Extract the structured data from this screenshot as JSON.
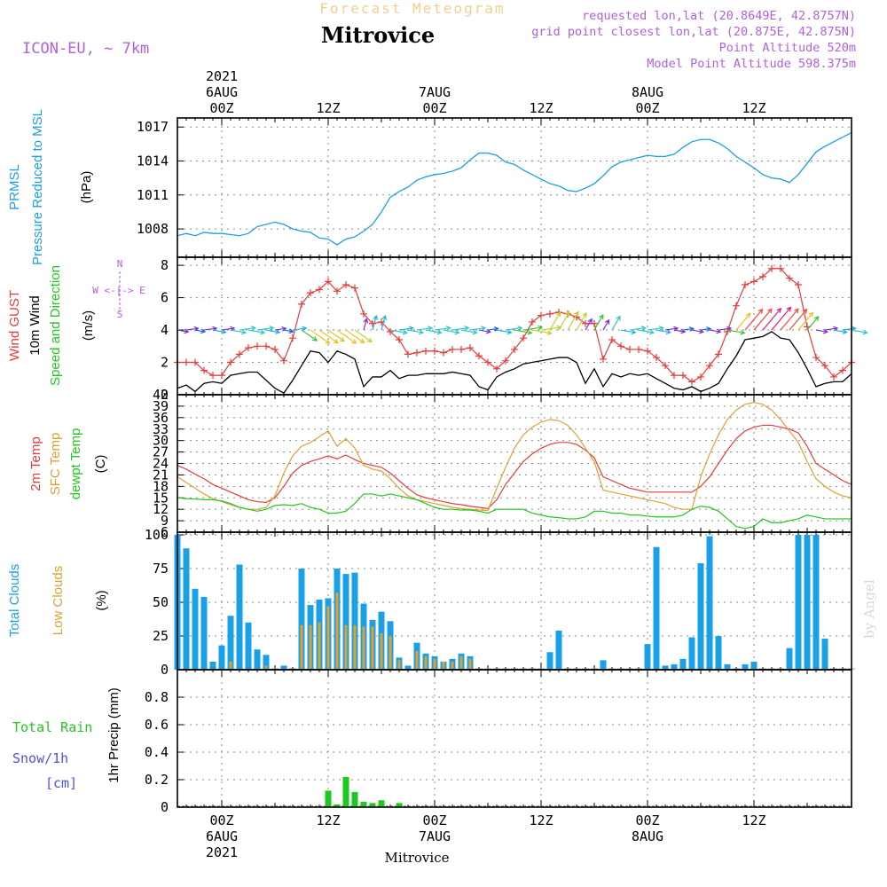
{
  "header": {
    "subtitle": "Forecast Meteogram",
    "location": "Mitrovice",
    "model": "ICON-EU, ~ 7km",
    "requested": "requested lon,lat (20.8649E, 42.8757N)",
    "gridpoint": "grid point closest lon,lat (20.875E, 42.875N)",
    "point_alt": "Point Altitude 520m",
    "model_alt": "Model Point Altitude 598.375m",
    "watermark": "by Angel",
    "footer": "Mitrovice"
  },
  "time_axis": {
    "top_labels": [
      {
        "h": 0,
        "lines": [
          "2021",
          "6AUG",
          "00Z"
        ]
      },
      {
        "h": 12,
        "lines": [
          "12Z"
        ]
      },
      {
        "h": 24,
        "lines": [
          "7AUG",
          "00Z"
        ]
      },
      {
        "h": 36,
        "lines": [
          "12Z"
        ]
      },
      {
        "h": 48,
        "lines": [
          "8AUG",
          "00Z"
        ]
      },
      {
        "h": 60,
        "lines": [
          "12Z"
        ]
      }
    ],
    "bottom_labels": [
      {
        "h": 0,
        "lines": [
          "00Z",
          "6AUG",
          "2021"
        ]
      },
      {
        "h": 12,
        "lines": [
          "12Z"
        ]
      },
      {
        "h": 24,
        "lines": [
          "00Z",
          "7AUG"
        ]
      },
      {
        "h": 36,
        "lines": [
          "12Z"
        ]
      },
      {
        "h": 48,
        "lines": [
          "00Z",
          "8AUG"
        ]
      },
      {
        "h": 60,
        "lines": [
          "12Z"
        ]
      }
    ],
    "start_hour": -5,
    "end_hour": 71
  },
  "colors": {
    "pressure": "#1aa0e6",
    "gust": "#e63c3c",
    "wind": "#000000",
    "temp2m": "#e63c3c",
    "sfc": "#e0a030",
    "dewpt": "#1ec81e",
    "total_clouds": "#1aa0e6",
    "low_clouds": "#e0a030",
    "rain": "#1ec81e",
    "snow": "#5050e6",
    "title_purple": "#b060e0",
    "subtitle_orange": "#f0d090"
  },
  "chart_data": [
    {
      "type": "line",
      "title": "PRMSL Pressure Reduced to MSL",
      "ylabel_lines": [
        "PRMSL",
        "Pressure Reduced to MSL"
      ],
      "unit": "(hPa)",
      "ylim": [
        1005.5,
        1017.8
      ],
      "yticks": [
        1008,
        1011,
        1014,
        1017
      ],
      "x": [
        -5,
        -4,
        -3,
        -2,
        -1,
        0,
        1,
        2,
        3,
        4,
        5,
        6,
        7,
        8,
        9,
        10,
        11,
        12,
        13,
        14,
        15,
        16,
        17,
        18,
        19,
        20,
        21,
        22,
        23,
        24,
        25,
        26,
        27,
        28,
        29,
        30,
        31,
        32,
        33,
        34,
        35,
        36,
        37,
        38,
        39,
        40,
        41,
        42,
        43,
        44,
        45,
        46,
        47,
        48,
        49,
        50,
        51,
        52,
        53,
        54,
        55,
        56,
        57,
        58,
        59,
        60,
        61,
        62,
        63,
        64,
        65,
        66,
        67,
        68,
        69,
        70,
        71
      ],
      "values": [
        1007.4,
        1007.6,
        1007.4,
        1007.7,
        1007.6,
        1007.6,
        1007.5,
        1007.4,
        1007.6,
        1008.2,
        1008.4,
        1008.6,
        1008.4,
        1008.0,
        1007.8,
        1007.7,
        1007.2,
        1007.1,
        1006.6,
        1007.1,
        1007.3,
        1007.8,
        1008.4,
        1009.5,
        1010.8,
        1011.3,
        1011.7,
        1012.3,
        1012.6,
        1012.8,
        1012.9,
        1013.1,
        1013.4,
        1014.1,
        1014.7,
        1014.7,
        1014.5,
        1013.9,
        1013.7,
        1013.2,
        1012.8,
        1012.4,
        1012.0,
        1011.8,
        1011.4,
        1011.3,
        1011.6,
        1012.0,
        1012.7,
        1013.5,
        1013.9,
        1014.1,
        1014.3,
        1014.5,
        1014.4,
        1014.4,
        1014.6,
        1015.2,
        1015.7,
        1015.9,
        1015.9,
        1015.6,
        1015.1,
        1014.4,
        1013.9,
        1013.4,
        1012.8,
        1012.5,
        1012.4,
        1012.1,
        1012.8,
        1013.8,
        1014.8,
        1015.3,
        1015.7,
        1016.1,
        1016.5
      ]
    },
    {
      "type": "line",
      "title": "Wind GUST, 10m Wind Speed and Direction",
      "ylabel_lines": [
        "Wind GUST",
        "10m Wind",
        "Speed and Direction"
      ],
      "unit": "(m/s)",
      "compass": [
        "N",
        "W <-|-> E",
        "S"
      ],
      "ylim": [
        0,
        8.5
      ],
      "yticks": [
        0,
        2,
        4,
        6,
        8
      ],
      "x": [
        -5,
        -4,
        -3,
        -2,
        -1,
        0,
        1,
        2,
        3,
        4,
        5,
        6,
        7,
        8,
        9,
        10,
        11,
        12,
        13,
        14,
        15,
        16,
        17,
        18,
        19,
        20,
        21,
        22,
        23,
        24,
        25,
        26,
        27,
        28,
        29,
        30,
        31,
        32,
        33,
        34,
        35,
        36,
        37,
        38,
        39,
        40,
        41,
        42,
        43,
        44,
        45,
        46,
        47,
        48,
        49,
        50,
        51,
        52,
        53,
        54,
        55,
        56,
        57,
        58,
        59,
        60,
        61,
        62,
        63,
        64,
        65,
        66,
        67,
        68,
        69,
        70,
        71
      ],
      "series": [
        {
          "name": "Wind GUST",
          "values": [
            2.0,
            2.0,
            2.0,
            1.5,
            1.2,
            1.2,
            2.0,
            2.5,
            2.9,
            3.0,
            3.0,
            2.8,
            2.1,
            3.5,
            5.6,
            6.3,
            6.5,
            7.0,
            6.4,
            6.8,
            6.6,
            5.0,
            4.4,
            4.5,
            3.9,
            3.4,
            2.5,
            2.6,
            2.7,
            2.7,
            2.6,
            2.8,
            2.8,
            2.9,
            2.4,
            2.0,
            1.6,
            2.1,
            2.8,
            3.5,
            4.5,
            4.9,
            5.0,
            5.1,
            5.0,
            4.8,
            4.4,
            4.4,
            2.2,
            3.4,
            3.0,
            2.8,
            2.8,
            2.7,
            2.3,
            1.8,
            1.2,
            1.2,
            0.8,
            1.1,
            1.8,
            2.5,
            3.9,
            5.5,
            6.8,
            7.0,
            7.3,
            7.8,
            7.8,
            7.2,
            6.8,
            4.2,
            2.3,
            1.8,
            1.1,
            1.5,
            2.0
          ]
        },
        {
          "name": "10m Wind",
          "values": [
            0.4,
            0.6,
            0.2,
            0.7,
            0.8,
            0.7,
            1.2,
            1.3,
            1.4,
            1.4,
            0.9,
            0.4,
            0.1,
            0.9,
            1.8,
            2.7,
            2.6,
            2.0,
            2.7,
            2.5,
            2.2,
            0.5,
            1.1,
            1.1,
            1.5,
            1.0,
            1.2,
            1.2,
            1.3,
            1.3,
            1.3,
            1.4,
            1.3,
            1.2,
            0.5,
            0.3,
            1.1,
            1.4,
            1.6,
            1.9,
            2.0,
            2.1,
            2.2,
            2.3,
            2.3,
            2.0,
            0.7,
            1.6,
            0.5,
            1.3,
            1.1,
            1.3,
            1.2,
            1.3,
            1.0,
            0.7,
            0.4,
            0.3,
            0.5,
            0.2,
            0.4,
            0.7,
            1.6,
            2.4,
            3.4,
            3.5,
            3.6,
            3.9,
            3.5,
            3.4,
            2.6,
            1.6,
            0.5,
            0.7,
            0.8,
            0.8,
            1.3
          ]
        }
      ]
    },
    {
      "type": "line",
      "title": "2m Temp, SFC Temp, dewpt Temp",
      "ylabel_lines": [
        "2m Temp",
        "SFC Temp",
        "dewpt Temp"
      ],
      "unit": "(C)",
      "ylim": [
        6,
        42
      ],
      "yticks": [
        6,
        9,
        12,
        15,
        18,
        21,
        24,
        27,
        30,
        33,
        36,
        39,
        42
      ],
      "x": [
        -5,
        -4,
        -3,
        -2,
        -1,
        0,
        1,
        2,
        3,
        4,
        5,
        6,
        7,
        8,
        9,
        10,
        11,
        12,
        13,
        14,
        15,
        16,
        17,
        18,
        19,
        20,
        21,
        22,
        23,
        24,
        25,
        26,
        27,
        28,
        29,
        30,
        31,
        32,
        33,
        34,
        35,
        36,
        37,
        38,
        39,
        40,
        41,
        42,
        43,
        44,
        45,
        46,
        47,
        48,
        49,
        50,
        51,
        52,
        53,
        54,
        55,
        56,
        57,
        58,
        59,
        60,
        61,
        62,
        63,
        64,
        65,
        66,
        67,
        68,
        69,
        70,
        71
      ],
      "series": [
        {
          "name": "2m Temp",
          "values": [
            23.5,
            22.5,
            21.2,
            20.0,
            18.5,
            17.5,
            16.5,
            15.5,
            14.5,
            14.0,
            13.8,
            15.0,
            18.0,
            21.5,
            23.5,
            24.5,
            25.2,
            26.0,
            25.2,
            26.2,
            25.0,
            24.0,
            23.5,
            23.0,
            21.5,
            19.5,
            17.5,
            15.8,
            15.0,
            14.5,
            14.0,
            13.5,
            13.2,
            12.8,
            12.5,
            12.2,
            14.5,
            18.5,
            21.5,
            24.5,
            26.5,
            28.0,
            29.0,
            29.5,
            29.5,
            29.0,
            27.5,
            25.5,
            20.5,
            19.5,
            18.5,
            17.5,
            17.0,
            16.5,
            16.5,
            16.5,
            16.5,
            16.5,
            16.5,
            18.0,
            20.5,
            24.0,
            27.5,
            30.5,
            32.5,
            33.5,
            34.0,
            34.0,
            33.5,
            33.0,
            32.0,
            28.5,
            24.0,
            22.5,
            21.0,
            19.5,
            18.5
          ]
        },
        {
          "name": "SFC Temp",
          "values": [
            20.5,
            19.0,
            17.5,
            16.0,
            14.8,
            14.0,
            13.2,
            12.5,
            12.0,
            12.0,
            12.5,
            15.5,
            21.5,
            26.0,
            28.5,
            29.5,
            31.0,
            32.5,
            28.5,
            30.5,
            28.0,
            23.5,
            22.5,
            22.0,
            20.0,
            17.5,
            15.5,
            14.5,
            14.0,
            13.5,
            13.0,
            12.5,
            12.2,
            12.0,
            11.8,
            11.7,
            17.5,
            23.0,
            28.0,
            31.5,
            33.5,
            34.8,
            35.5,
            35.2,
            34.0,
            31.5,
            28.0,
            24.5,
            17.0,
            16.5,
            16.0,
            15.5,
            15.0,
            14.5,
            14.0,
            13.5,
            12.5,
            12.0,
            12.0,
            20.5,
            26.5,
            31.5,
            35.5,
            38.0,
            39.5,
            40.0,
            39.5,
            38.0,
            35.5,
            32.5,
            29.5,
            24.5,
            20.0,
            18.0,
            16.5,
            15.5,
            15.0
          ]
        },
        {
          "name": "dewpt Temp",
          "values": [
            15.0,
            14.8,
            14.7,
            14.5,
            14.5,
            14.2,
            13.5,
            12.5,
            12.0,
            11.5,
            12.0,
            13.0,
            13.2,
            13.0,
            13.5,
            12.5,
            12.0,
            11.0,
            11.0,
            11.5,
            13.5,
            16.0,
            16.0,
            15.5,
            16.0,
            15.5,
            15.0,
            14.5,
            13.5,
            12.5,
            12.0,
            12.0,
            11.8,
            11.8,
            11.5,
            11.0,
            12.0,
            12.0,
            12.0,
            12.0,
            11.0,
            10.5,
            10.0,
            9.8,
            9.5,
            9.5,
            10.0,
            11.5,
            11.5,
            11.0,
            11.0,
            10.5,
            10.5,
            10.2,
            10.0,
            10.0,
            10.0,
            10.5,
            12.0,
            12.8,
            12.5,
            11.5,
            9.5,
            7.5,
            7.0,
            7.5,
            9.5,
            8.5,
            8.5,
            9.0,
            9.5,
            10.5,
            10.0,
            9.5,
            9.5,
            9.5,
            9.5
          ]
        }
      ]
    },
    {
      "type": "bar",
      "title": "Total Clouds, Low Clouds",
      "ylabel_lines": [
        "Total Clouds",
        "Low Clouds"
      ],
      "unit": "(%)",
      "ylim": [
        0,
        102
      ],
      "yticks": [
        0,
        25,
        50,
        75,
        100
      ],
      "x": [
        -5,
        -4,
        -3,
        -2,
        -1,
        0,
        1,
        2,
        3,
        4,
        5,
        6,
        7,
        8,
        9,
        10,
        11,
        12,
        13,
        14,
        15,
        16,
        17,
        18,
        19,
        20,
        21,
        22,
        23,
        24,
        25,
        26,
        27,
        28,
        29,
        30,
        31,
        32,
        33,
        34,
        35,
        36,
        37,
        38,
        39,
        40,
        41,
        42,
        43,
        44,
        45,
        46,
        47,
        48,
        49,
        50,
        51,
        52,
        53,
        54,
        55,
        56,
        57,
        58,
        59,
        60,
        61,
        62,
        63,
        64,
        65,
        66,
        67,
        68,
        69,
        70,
        71
      ],
      "series": [
        {
          "name": "Total Clouds",
          "values": [
            100,
            90,
            60,
            54,
            6,
            18,
            40,
            78,
            35,
            15,
            11,
            0,
            3,
            0,
            75,
            48,
            52,
            53,
            75,
            71,
            72,
            49,
            37,
            43,
            36,
            9,
            3,
            20,
            12,
            10,
            6,
            8,
            12,
            10,
            0,
            0,
            0,
            0,
            0,
            0,
            0,
            0,
            13,
            29,
            0,
            0,
            0,
            0,
            7,
            0,
            0,
            0,
            0,
            19,
            91,
            3,
            4,
            8,
            24,
            79,
            99,
            25,
            4,
            0,
            4,
            6,
            0,
            0,
            0,
            16,
            100,
            100,
            100,
            23,
            0,
            0,
            0
          ]
        },
        {
          "name": "Low Clouds",
          "values": [
            0,
            0,
            0,
            0,
            0,
            0,
            6,
            0,
            0,
            0,
            3,
            0,
            0,
            0,
            33,
            33,
            35,
            47,
            57,
            33,
            33,
            32,
            32,
            27,
            25,
            7,
            0,
            14,
            10,
            8,
            6,
            6,
            10,
            8,
            0,
            0,
            0,
            0,
            0,
            0,
            0,
            0,
            0,
            0,
            0,
            0,
            0,
            0,
            0,
            0,
            0,
            0,
            0,
            0,
            0,
            0,
            0,
            0,
            0,
            0,
            0,
            0,
            0,
            0,
            0,
            0,
            0,
            0,
            0,
            0,
            0,
            0,
            0,
            0,
            0,
            0,
            0
          ]
        }
      ]
    },
    {
      "type": "bar",
      "title": "1hr Precip",
      "ylabel_lines": [
        "Total Rain",
        "Snow/1h",
        "[cm]"
      ],
      "unit": "1hr Precip (mm)",
      "ylim": [
        0,
        1.0
      ],
      "yticks": [
        0,
        0.2,
        0.4,
        0.6,
        0.8
      ],
      "ytick_labels": [
        "0",
        "0.2",
        "0.4",
        "0.6",
        "0.8"
      ],
      "x": [
        12,
        13,
        14,
        15,
        16,
        17,
        18,
        20
      ],
      "values": [
        0.12,
        0.02,
        0.22,
        0.11,
        0.04,
        0.03,
        0.05,
        0.03
      ]
    }
  ]
}
